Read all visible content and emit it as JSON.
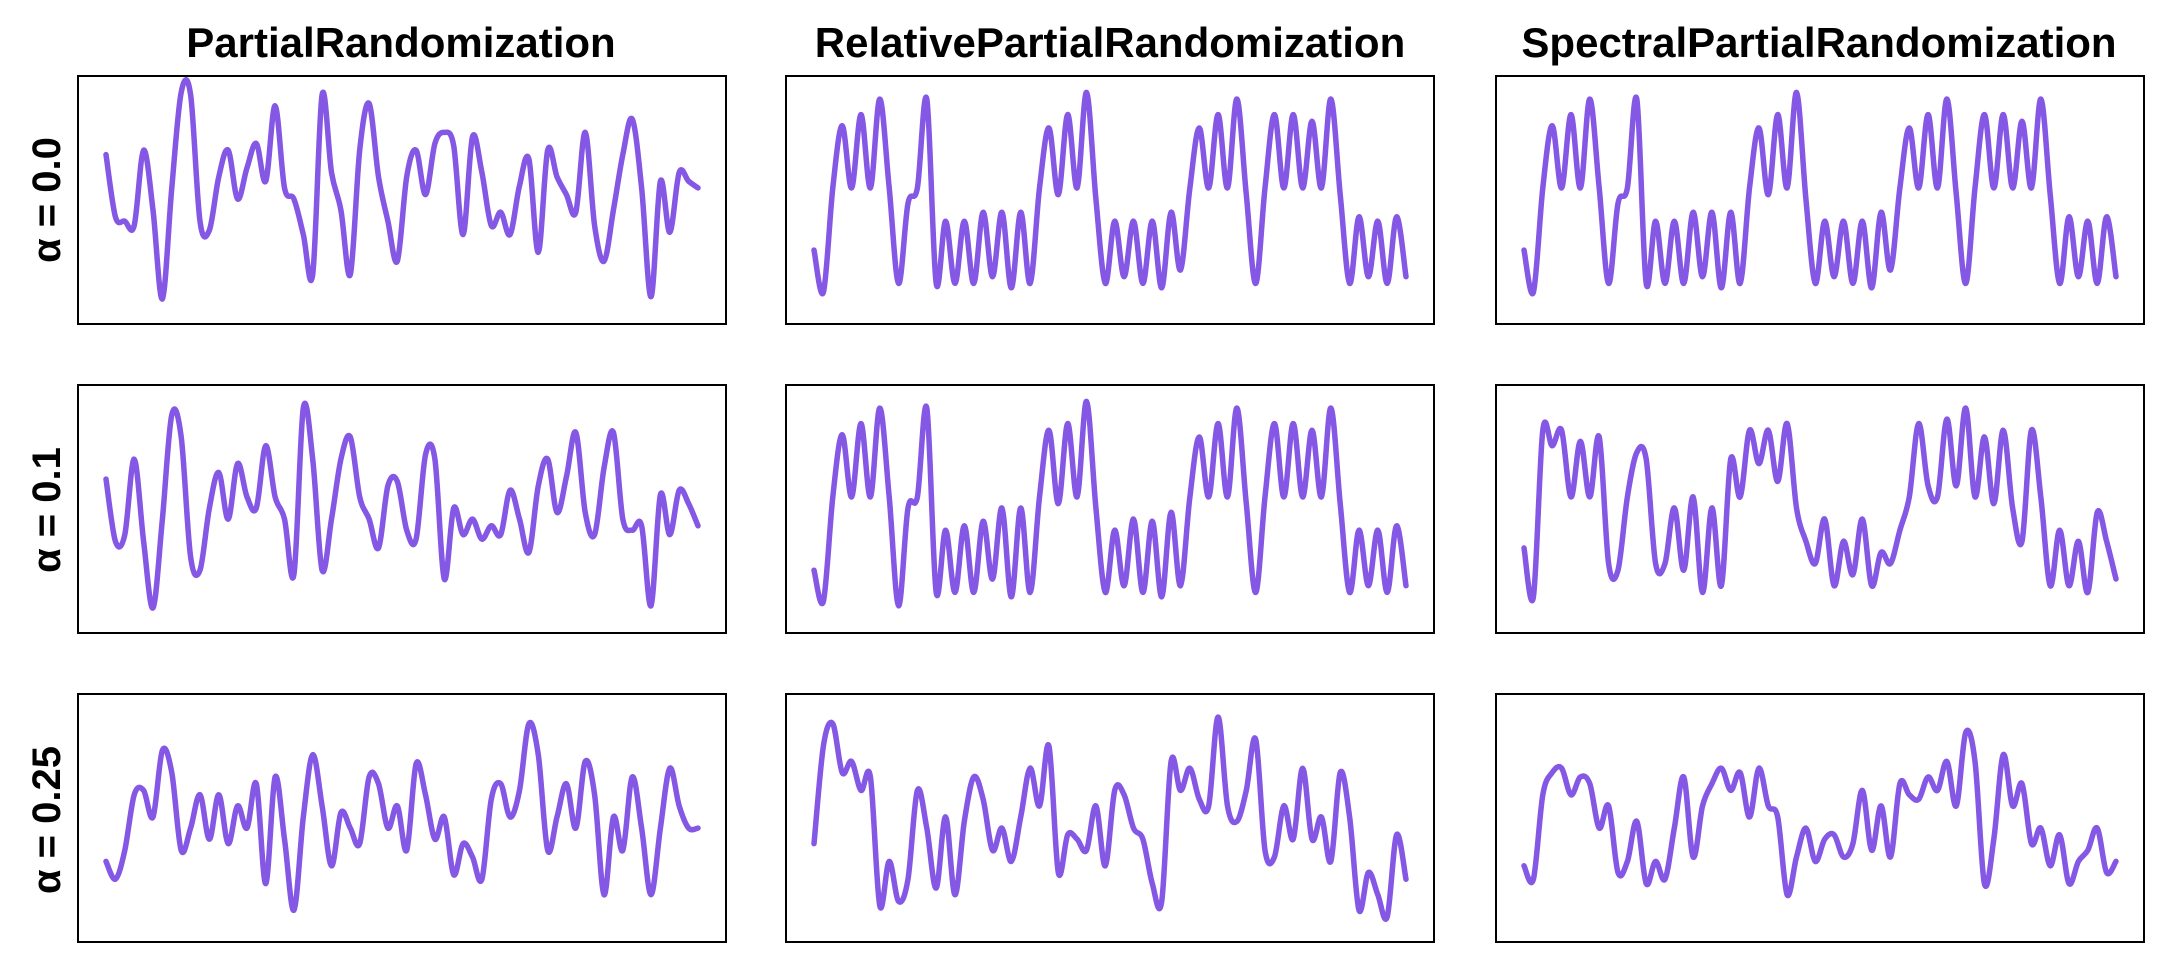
{
  "figure": {
    "column_titles": [
      "PartialRandomization",
      "RelativePartialRandomization",
      "SpectralPartialRandomization"
    ],
    "row_labels": [
      "α = 0.0",
      "α = 0.1",
      "α = 0.25"
    ],
    "line_color": "#8457e4"
  },
  "chart_data": [
    {
      "type": "line",
      "row": 0,
      "col": 0,
      "ylim": [
        0,
        1
      ],
      "x_axis": "hidden",
      "y_axis": "hidden",
      "grid": false,
      "series": [
        {
          "values": [
            0.7,
            0.42,
            0.4,
            0.38,
            0.72,
            0.45,
            0.05,
            0.55,
            0.98,
            0.97,
            0.4,
            0.36,
            0.6,
            0.72,
            0.5,
            0.64,
            0.75,
            0.58,
            0.92,
            0.55,
            0.5,
            0.34,
            0.16,
            0.97,
            0.62,
            0.45,
            0.16,
            0.72,
            0.93,
            0.6,
            0.4,
            0.22,
            0.6,
            0.72,
            0.52,
            0.75,
            0.8,
            0.74,
            0.34,
            0.78,
            0.62,
            0.38,
            0.44,
            0.34,
            0.56,
            0.68,
            0.26,
            0.72,
            0.6,
            0.52,
            0.44,
            0.8,
            0.38,
            0.22,
            0.45,
            0.7,
            0.86,
            0.55,
            0.06,
            0.58,
            0.35,
            0.62,
            0.58,
            0.55
          ]
        }
      ]
    },
    {
      "type": "line",
      "row": 0,
      "col": 1,
      "ylim": [
        0,
        1
      ],
      "x_axis": "hidden",
      "y_axis": "hidden",
      "grid": false,
      "series": [
        {
          "values": [
            0.27,
            0.08,
            0.55,
            0.83,
            0.55,
            0.88,
            0.55,
            0.95,
            0.55,
            0.12,
            0.48,
            0.55,
            0.95,
            0.12,
            0.4,
            0.12,
            0.4,
            0.12,
            0.44,
            0.15,
            0.44,
            0.1,
            0.44,
            0.12,
            0.55,
            0.82,
            0.52,
            0.88,
            0.55,
            0.98,
            0.5,
            0.12,
            0.4,
            0.15,
            0.4,
            0.12,
            0.4,
            0.1,
            0.44,
            0.18,
            0.55,
            0.82,
            0.55,
            0.88,
            0.55,
            0.95,
            0.52,
            0.12,
            0.55,
            0.88,
            0.55,
            0.88,
            0.55,
            0.85,
            0.55,
            0.95,
            0.52,
            0.12,
            0.42,
            0.15,
            0.4,
            0.12,
            0.42,
            0.15
          ]
        }
      ]
    },
    {
      "type": "line",
      "row": 0,
      "col": 2,
      "ylim": [
        0,
        1
      ],
      "x_axis": "hidden",
      "y_axis": "hidden",
      "grid": false,
      "series": [
        {
          "values": [
            0.27,
            0.08,
            0.55,
            0.83,
            0.55,
            0.88,
            0.55,
            0.95,
            0.55,
            0.12,
            0.48,
            0.55,
            0.95,
            0.12,
            0.4,
            0.12,
            0.4,
            0.12,
            0.44,
            0.15,
            0.44,
            0.1,
            0.44,
            0.12,
            0.55,
            0.82,
            0.52,
            0.88,
            0.55,
            0.98,
            0.5,
            0.12,
            0.4,
            0.15,
            0.4,
            0.12,
            0.4,
            0.1,
            0.44,
            0.18,
            0.55,
            0.82,
            0.55,
            0.88,
            0.55,
            0.95,
            0.52,
            0.12,
            0.55,
            0.88,
            0.55,
            0.88,
            0.55,
            0.85,
            0.55,
            0.95,
            0.52,
            0.12,
            0.42,
            0.15,
            0.4,
            0.12,
            0.42,
            0.15
          ]
        }
      ]
    },
    {
      "type": "line",
      "row": 1,
      "col": 0,
      "ylim": [
        0,
        1
      ],
      "x_axis": "hidden",
      "y_axis": "hidden",
      "grid": false,
      "series": [
        {
          "values": [
            0.63,
            0.35,
            0.38,
            0.72,
            0.35,
            0.05,
            0.45,
            0.92,
            0.82,
            0.28,
            0.22,
            0.5,
            0.66,
            0.45,
            0.7,
            0.55,
            0.5,
            0.78,
            0.55,
            0.45,
            0.2,
            0.95,
            0.72,
            0.22,
            0.45,
            0.72,
            0.82,
            0.55,
            0.45,
            0.32,
            0.6,
            0.62,
            0.4,
            0.36,
            0.74,
            0.72,
            0.18,
            0.5,
            0.38,
            0.45,
            0.36,
            0.42,
            0.38,
            0.58,
            0.45,
            0.3,
            0.6,
            0.72,
            0.48,
            0.64,
            0.84,
            0.48,
            0.38,
            0.68,
            0.84,
            0.45,
            0.4,
            0.42,
            0.06,
            0.56,
            0.38,
            0.58,
            0.52,
            0.42
          ]
        }
      ]
    },
    {
      "type": "line",
      "row": 1,
      "col": 1,
      "ylim": [
        0,
        1
      ],
      "x_axis": "hidden",
      "y_axis": "hidden",
      "grid": false,
      "series": [
        {
          "values": [
            0.22,
            0.08,
            0.55,
            0.83,
            0.55,
            0.88,
            0.55,
            0.95,
            0.55,
            0.06,
            0.5,
            0.55,
            0.95,
            0.12,
            0.4,
            0.12,
            0.42,
            0.12,
            0.44,
            0.18,
            0.5,
            0.1,
            0.5,
            0.12,
            0.55,
            0.85,
            0.52,
            0.88,
            0.55,
            0.98,
            0.5,
            0.12,
            0.4,
            0.15,
            0.45,
            0.12,
            0.44,
            0.1,
            0.48,
            0.15,
            0.55,
            0.82,
            0.55,
            0.88,
            0.55,
            0.95,
            0.52,
            0.12,
            0.55,
            0.88,
            0.55,
            0.88,
            0.55,
            0.85,
            0.55,
            0.95,
            0.52,
            0.12,
            0.4,
            0.15,
            0.4,
            0.12,
            0.42,
            0.15
          ]
        }
      ]
    },
    {
      "type": "line",
      "row": 1,
      "col": 2,
      "ylim": [
        0,
        1
      ],
      "x_axis": "hidden",
      "y_axis": "hidden",
      "grid": false,
      "series": [
        {
          "values": [
            0.32,
            0.1,
            0.85,
            0.78,
            0.85,
            0.55,
            0.8,
            0.55,
            0.82,
            0.25,
            0.22,
            0.55,
            0.75,
            0.72,
            0.25,
            0.25,
            0.5,
            0.22,
            0.55,
            0.12,
            0.5,
            0.15,
            0.72,
            0.55,
            0.85,
            0.7,
            0.85,
            0.62,
            0.88,
            0.5,
            0.35,
            0.25,
            0.45,
            0.15,
            0.35,
            0.2,
            0.45,
            0.15,
            0.3,
            0.25,
            0.4,
            0.55,
            0.88,
            0.6,
            0.55,
            0.9,
            0.6,
            0.95,
            0.55,
            0.82,
            0.52,
            0.85,
            0.5,
            0.35,
            0.85,
            0.55,
            0.15,
            0.4,
            0.15,
            0.35,
            0.12,
            0.48,
            0.35,
            0.18
          ]
        }
      ]
    },
    {
      "type": "line",
      "row": 2,
      "col": 0,
      "ylim": [
        0,
        1
      ],
      "x_axis": "hidden",
      "y_axis": "hidden",
      "grid": false,
      "series": [
        {
          "values": [
            0.3,
            0.22,
            0.35,
            0.6,
            0.62,
            0.5,
            0.8,
            0.7,
            0.35,
            0.45,
            0.6,
            0.4,
            0.6,
            0.38,
            0.55,
            0.45,
            0.65,
            0.2,
            0.68,
            0.4,
            0.08,
            0.5,
            0.78,
            0.55,
            0.28,
            0.52,
            0.45,
            0.38,
            0.68,
            0.65,
            0.45,
            0.55,
            0.35,
            0.74,
            0.6,
            0.4,
            0.5,
            0.24,
            0.38,
            0.32,
            0.22,
            0.58,
            0.65,
            0.5,
            0.62,
            0.92,
            0.78,
            0.35,
            0.5,
            0.65,
            0.45,
            0.75,
            0.6,
            0.15,
            0.5,
            0.35,
            0.68,
            0.45,
            0.15,
            0.45,
            0.72,
            0.55,
            0.45,
            0.45
          ]
        }
      ]
    },
    {
      "type": "line",
      "row": 2,
      "col": 1,
      "ylim": [
        0,
        1
      ],
      "x_axis": "hidden",
      "y_axis": "hidden",
      "grid": false,
      "series": [
        {
          "values": [
            0.38,
            0.82,
            0.92,
            0.7,
            0.75,
            0.62,
            0.68,
            0.1,
            0.3,
            0.12,
            0.22,
            0.62,
            0.45,
            0.18,
            0.5,
            0.15,
            0.48,
            0.68,
            0.58,
            0.35,
            0.45,
            0.3,
            0.5,
            0.72,
            0.55,
            0.82,
            0.25,
            0.42,
            0.4,
            0.35,
            0.55,
            0.28,
            0.62,
            0.6,
            0.45,
            0.4,
            0.2,
            0.12,
            0.75,
            0.62,
            0.72,
            0.58,
            0.55,
            0.95,
            0.55,
            0.48,
            0.62,
            0.85,
            0.35,
            0.32,
            0.55,
            0.4,
            0.72,
            0.4,
            0.5,
            0.3,
            0.7,
            0.5,
            0.08,
            0.25,
            0.15,
            0.05,
            0.42,
            0.22
          ]
        }
      ]
    },
    {
      "type": "line",
      "row": 2,
      "col": 2,
      "ylim": [
        0,
        1
      ],
      "x_axis": "hidden",
      "y_axis": "hidden",
      "grid": false,
      "series": [
        {
          "values": [
            0.28,
            0.22,
            0.6,
            0.7,
            0.72,
            0.6,
            0.68,
            0.65,
            0.45,
            0.55,
            0.25,
            0.3,
            0.48,
            0.2,
            0.3,
            0.22,
            0.45,
            0.68,
            0.32,
            0.55,
            0.65,
            0.72,
            0.62,
            0.7,
            0.5,
            0.72,
            0.55,
            0.5,
            0.15,
            0.32,
            0.45,
            0.3,
            0.4,
            0.42,
            0.32,
            0.38,
            0.62,
            0.35,
            0.55,
            0.32,
            0.65,
            0.6,
            0.58,
            0.68,
            0.62,
            0.75,
            0.55,
            0.88,
            0.75,
            0.2,
            0.4,
            0.78,
            0.55,
            0.65,
            0.38,
            0.45,
            0.28,
            0.42,
            0.2,
            0.3,
            0.35,
            0.45,
            0.25,
            0.3
          ]
        }
      ]
    }
  ]
}
